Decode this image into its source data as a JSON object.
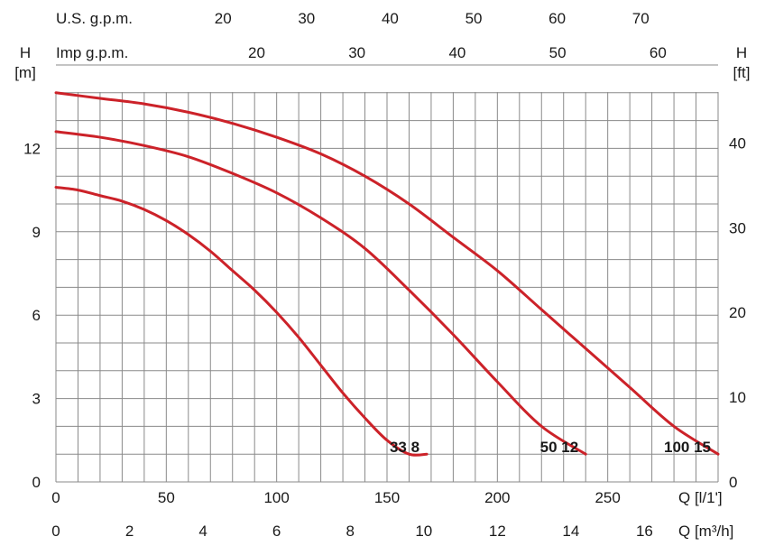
{
  "chart_data": {
    "type": "line",
    "x_axis_primary": {
      "label": "Q [l/1']",
      "ticks": [
        0,
        50,
        100,
        150,
        200,
        250
      ],
      "range": [
        0,
        300
      ]
    },
    "x_axis_secondary": {
      "label": "Q [m³/h]",
      "ticks": [
        0,
        2,
        4,
        6,
        8,
        10,
        12,
        14,
        16
      ],
      "range": [
        0,
        18
      ]
    },
    "x_axis_top_us": {
      "label": "U.S. g.p.m.",
      "ticks": [
        20,
        30,
        40,
        50,
        60,
        70
      ]
    },
    "x_axis_top_imp": {
      "label": "Imp g.p.m.",
      "ticks": [
        20,
        30,
        40,
        50,
        60
      ]
    },
    "y_axis_left": {
      "label": "H",
      "unit": "[m]",
      "ticks": [
        0,
        3,
        6,
        9,
        12
      ],
      "range": [
        0,
        15
      ]
    },
    "y_axis_right": {
      "label": "H",
      "unit": "[ft]",
      "ticks": [
        0,
        10,
        20,
        30,
        40
      ]
    },
    "grid": true,
    "series": [
      {
        "name": "33 8",
        "color": "#cc2229",
        "x": [
          0,
          10,
          20,
          30,
          40,
          50,
          60,
          70,
          80,
          90,
          100,
          110,
          120,
          130,
          140,
          150,
          160,
          168
        ],
        "y": [
          10.6,
          10.5,
          10.3,
          10.1,
          9.8,
          9.4,
          8.9,
          8.3,
          7.6,
          6.9,
          6.1,
          5.2,
          4.2,
          3.2,
          2.3,
          1.5,
          1.0,
          1.0
        ]
      },
      {
        "name": "50 12",
        "color": "#cc2229",
        "x": [
          0,
          20,
          40,
          60,
          80,
          100,
          120,
          140,
          160,
          180,
          200,
          220,
          240
        ],
        "y": [
          12.6,
          12.4,
          12.1,
          11.7,
          11.1,
          10.4,
          9.5,
          8.4,
          6.9,
          5.3,
          3.6,
          2.0,
          1.0
        ]
      },
      {
        "name": "100 15",
        "color": "#cc2229",
        "x": [
          0,
          20,
          40,
          60,
          80,
          100,
          120,
          140,
          160,
          180,
          200,
          220,
          240,
          260,
          280,
          300
        ],
        "y": [
          14.0,
          13.8,
          13.6,
          13.3,
          12.9,
          12.4,
          11.8,
          11.0,
          10.0,
          8.8,
          7.6,
          6.2,
          4.8,
          3.4,
          2.0,
          1.0
        ]
      }
    ],
    "curve_labels": [
      "33 8",
      "50 12",
      "100 15"
    ]
  }
}
